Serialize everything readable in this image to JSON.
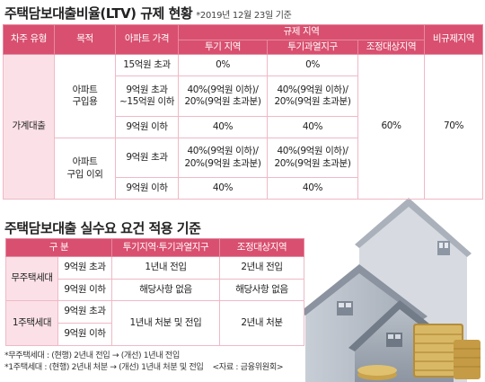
{
  "ltv": {
    "title": "주택담보대출비율(LTV) 규제 현황",
    "date_note": "*2019년 12월 23일 기준",
    "headers": {
      "type": "차주 유형",
      "purpose": "목적",
      "price": "아파트 가격",
      "regulated": "규제 지역",
      "speculation": "투기 지역",
      "overheated": "투기과열지구",
      "adjustment": "조정대상지역",
      "non_regulated": "비규제지역"
    },
    "household": "가계대출",
    "purpose_residential": "아파트\n구입용",
    "purpose_other": "아파트\n구입 이외",
    "rows": [
      {
        "price": "15억원 초과",
        "speculation": "0%",
        "overheated": "0%"
      },
      {
        "price": "9억원 초과\n~15억원 이하",
        "speculation": "40%(9억원 이하)/\n20%(9억원 초과분)",
        "overheated": "40%(9억원 이하)/\n20%(9억원 초과분)"
      },
      {
        "price": "9억원 이하",
        "speculation": "40%",
        "overheated": "40%"
      },
      {
        "price": "9억원 초과",
        "speculation": "40%(9억원 이하)/\n20%(9억원 초과분)",
        "overheated": "40%(9억원 이하)/\n20%(9억원 초과분)"
      },
      {
        "price": "9억원 이하",
        "speculation": "40%",
        "overheated": "40%"
      }
    ],
    "adjustment_value": "60%",
    "non_regulated_value": "70%"
  },
  "demand": {
    "title": "주택담보대출 실수요 요건 적용 기준",
    "headers": {
      "category": "구 분",
      "spec_over": "투기지역·투기과열지구",
      "adjust": "조정대상지역"
    },
    "no_home": "무주택세대",
    "one_home": "1주택세대",
    "rows": [
      {
        "price": "9억원 초과",
        "spec_over": "1년내 전입",
        "adjust": "2년내 전입"
      },
      {
        "price": "9억원 이하",
        "spec_over": "해당사항 없음",
        "adjust": "해당사항 없음"
      },
      {
        "price": "9억원 초과"
      },
      {
        "price": "9억원 이하"
      }
    ],
    "one_home_spec_over": "1년내 처분 및 전입",
    "one_home_adjust": "2년내 처분"
  },
  "notes": {
    "line1": "*무주택세대 : (현행) 2년내 전입 → (개선) 1년내 전입",
    "line2": "*1주택세대 : (현행) 2년내 처분 → (개선) 1년내 처분 및 전입",
    "source": "<자료 : 금융위원회>"
  },
  "colors": {
    "header": "#d94f6f",
    "category_bg": "#fbe1e7",
    "house_gray": "#9aa2ad",
    "coin_gold": "#c9a24a"
  }
}
